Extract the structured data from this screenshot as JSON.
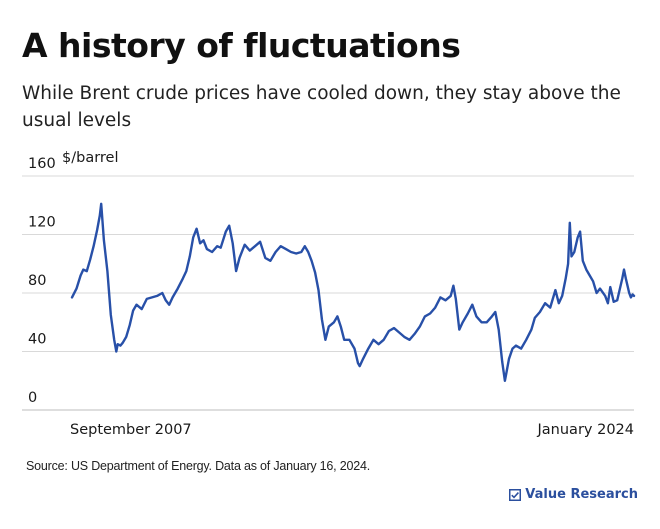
{
  "title": "A history of fluctuations",
  "subtitle": "While Brent crude prices have cooled down, they stay above the usual levels",
  "source": "Source: US Department of Energy. Data as of January 16, 2024.",
  "brand": {
    "name": "Value Research",
    "icon": "checkbox-icon"
  },
  "colors": {
    "line": "#2850a8",
    "grid": "#d9d9d9",
    "text": "#1a1a1a",
    "brand": "#2b4f9e"
  },
  "chart_data": {
    "type": "line",
    "title": "A history of fluctuations",
    "xlabel": "",
    "ylabel": "$/barrel",
    "ylim": [
      0,
      160
    ],
    "yticks": [
      0,
      40,
      80,
      120,
      160
    ],
    "ytick_labels": [
      "0",
      "40",
      "80",
      "120",
      "160"
    ],
    "x_labels": [
      {
        "text": "September 2007",
        "x": 2007.67
      },
      {
        "text": "January 2024",
        "x": 2024.04
      }
    ],
    "xlim": [
      2007.67,
      2024.04
    ],
    "grid": true,
    "legend": "none",
    "series": [
      {
        "points": [
          [
            2007.67,
            77
          ],
          [
            2007.8,
            83
          ],
          [
            2007.92,
            92
          ],
          [
            2008.0,
            96
          ],
          [
            2008.1,
            95
          ],
          [
            2008.2,
            103
          ],
          [
            2008.3,
            112
          ],
          [
            2008.4,
            123
          ],
          [
            2008.48,
            133
          ],
          [
            2008.52,
            141
          ],
          [
            2008.6,
            116
          ],
          [
            2008.7,
            95
          ],
          [
            2008.8,
            65
          ],
          [
            2008.9,
            48
          ],
          [
            2008.96,
            40
          ],
          [
            2009.0,
            45
          ],
          [
            2009.08,
            44
          ],
          [
            2009.15,
            46
          ],
          [
            2009.25,
            50
          ],
          [
            2009.35,
            58
          ],
          [
            2009.45,
            68
          ],
          [
            2009.55,
            72
          ],
          [
            2009.7,
            69
          ],
          [
            2009.85,
            76
          ],
          [
            2010.0,
            77
          ],
          [
            2010.15,
            78
          ],
          [
            2010.3,
            80
          ],
          [
            2010.4,
            75
          ],
          [
            2010.5,
            72
          ],
          [
            2010.6,
            77
          ],
          [
            2010.75,
            83
          ],
          [
            2010.9,
            90
          ],
          [
            2011.0,
            95
          ],
          [
            2011.1,
            105
          ],
          [
            2011.2,
            118
          ],
          [
            2011.3,
            124
          ],
          [
            2011.4,
            114
          ],
          [
            2011.5,
            116
          ],
          [
            2011.6,
            110
          ],
          [
            2011.75,
            108
          ],
          [
            2011.9,
            112
          ],
          [
            2012.0,
            111
          ],
          [
            2012.15,
            122
          ],
          [
            2012.25,
            126
          ],
          [
            2012.35,
            114
          ],
          [
            2012.45,
            95
          ],
          [
            2012.55,
            104
          ],
          [
            2012.7,
            113
          ],
          [
            2012.85,
            109
          ],
          [
            2013.0,
            112
          ],
          [
            2013.15,
            115
          ],
          [
            2013.3,
            104
          ],
          [
            2013.45,
            102
          ],
          [
            2013.6,
            108
          ],
          [
            2013.75,
            112
          ],
          [
            2013.9,
            110
          ],
          [
            2014.05,
            108
          ],
          [
            2014.2,
            107
          ],
          [
            2014.35,
            108
          ],
          [
            2014.45,
            112
          ],
          [
            2014.55,
            108
          ],
          [
            2014.65,
            102
          ],
          [
            2014.75,
            94
          ],
          [
            2014.85,
            82
          ],
          [
            2014.95,
            62
          ],
          [
            2015.05,
            48
          ],
          [
            2015.15,
            57
          ],
          [
            2015.3,
            60
          ],
          [
            2015.4,
            64
          ],
          [
            2015.5,
            57
          ],
          [
            2015.6,
            48
          ],
          [
            2015.75,
            48
          ],
          [
            2015.9,
            42
          ],
          [
            2016.0,
            32
          ],
          [
            2016.05,
            30
          ],
          [
            2016.15,
            35
          ],
          [
            2016.3,
            42
          ],
          [
            2016.45,
            48
          ],
          [
            2016.6,
            45
          ],
          [
            2016.75,
            48
          ],
          [
            2016.9,
            54
          ],
          [
            2017.05,
            56
          ],
          [
            2017.2,
            53
          ],
          [
            2017.35,
            50
          ],
          [
            2017.5,
            48
          ],
          [
            2017.65,
            52
          ],
          [
            2017.8,
            57
          ],
          [
            2017.95,
            64
          ],
          [
            2018.1,
            66
          ],
          [
            2018.25,
            70
          ],
          [
            2018.4,
            77
          ],
          [
            2018.55,
            75
          ],
          [
            2018.7,
            78
          ],
          [
            2018.78,
            85
          ],
          [
            2018.85,
            76
          ],
          [
            2018.95,
            55
          ],
          [
            2019.05,
            60
          ],
          [
            2019.2,
            66
          ],
          [
            2019.33,
            72
          ],
          [
            2019.45,
            64
          ],
          [
            2019.6,
            60
          ],
          [
            2019.75,
            60
          ],
          [
            2019.9,
            64
          ],
          [
            2020.0,
            67
          ],
          [
            2020.1,
            55
          ],
          [
            2020.2,
            33
          ],
          [
            2020.28,
            20
          ],
          [
            2020.32,
            25
          ],
          [
            2020.4,
            35
          ],
          [
            2020.5,
            42
          ],
          [
            2020.6,
            44
          ],
          [
            2020.75,
            42
          ],
          [
            2020.9,
            48
          ],
          [
            2021.05,
            55
          ],
          [
            2021.15,
            63
          ],
          [
            2021.3,
            67
          ],
          [
            2021.45,
            73
          ],
          [
            2021.6,
            70
          ],
          [
            2021.75,
            82
          ],
          [
            2021.85,
            73
          ],
          [
            2021.95,
            78
          ],
          [
            2022.05,
            90
          ],
          [
            2022.12,
            100
          ],
          [
            2022.17,
            128
          ],
          [
            2022.22,
            105
          ],
          [
            2022.3,
            108
          ],
          [
            2022.4,
            118
          ],
          [
            2022.47,
            122
          ],
          [
            2022.55,
            102
          ],
          [
            2022.65,
            96
          ],
          [
            2022.75,
            92
          ],
          [
            2022.85,
            88
          ],
          [
            2022.95,
            80
          ],
          [
            2023.05,
            83
          ],
          [
            2023.2,
            78
          ],
          [
            2023.28,
            73
          ],
          [
            2023.35,
            84
          ],
          [
            2023.45,
            74
          ],
          [
            2023.55,
            75
          ],
          [
            2023.6,
            80
          ],
          [
            2023.7,
            90
          ],
          [
            2023.75,
            96
          ],
          [
            2023.8,
            90
          ],
          [
            2023.85,
            85
          ],
          [
            2023.9,
            80
          ],
          [
            2023.95,
            77
          ],
          [
            2024.0,
            79
          ],
          [
            2024.04,
            78
          ]
        ]
      }
    ]
  }
}
